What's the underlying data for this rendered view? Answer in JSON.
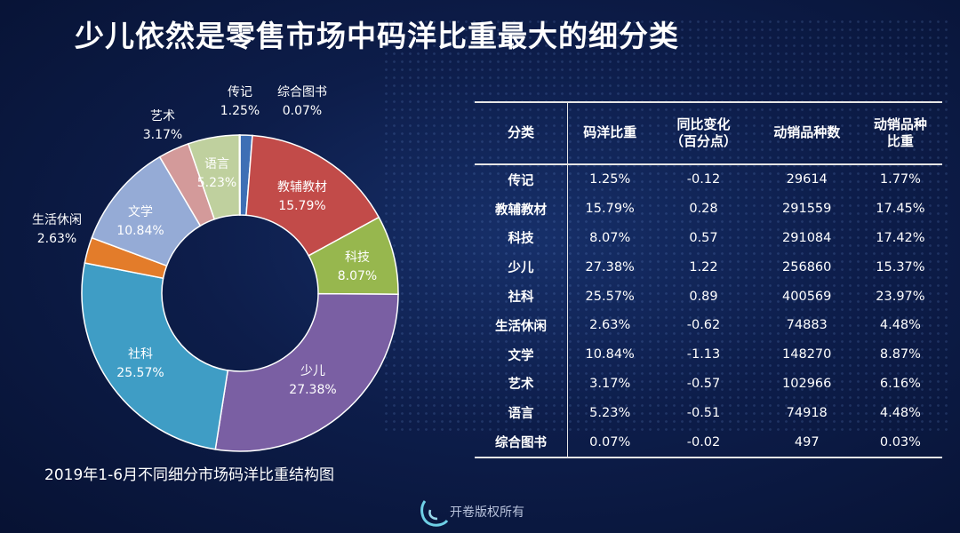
{
  "title": "少儿依然是零售市场中码洋比重最大的细分类",
  "chart_caption": "2019年1-6月不同细分市场码洋比重结构图",
  "watermark": "开卷版权所有",
  "chart_data": {
    "type": "pie",
    "title": "2019年1-6月不同细分市场码洋比重结构图",
    "slices": [
      {
        "label": "传记",
        "value": 1.25,
        "display": "1.25%",
        "color": "#3e6fb5"
      },
      {
        "label": "教辅教材",
        "value": 15.79,
        "display": "15.79%",
        "color": "#c24b49"
      },
      {
        "label": "科技",
        "value": 8.07,
        "display": "8.07%",
        "color": "#97b74e"
      },
      {
        "label": "少儿",
        "value": 27.38,
        "display": "27.38%",
        "color": "#7a5fa3"
      },
      {
        "label": "社科",
        "value": 25.57,
        "display": "25.57%",
        "color": "#3f9dc5"
      },
      {
        "label": "生活休闲",
        "value": 2.63,
        "display": "2.63%",
        "color": "#e37c2a"
      },
      {
        "label": "文学",
        "value": 10.84,
        "display": "10.84%",
        "color": "#95abd6"
      },
      {
        "label": "艺术",
        "value": 3.17,
        "display": "3.17%",
        "color": "#d39a9a"
      },
      {
        "label": "语言",
        "value": 5.23,
        "display": "5.23%",
        "color": "#bfd09e"
      },
      {
        "label": "综合图书",
        "value": 0.07,
        "display": "0.07%",
        "color": "#2a4f86"
      }
    ]
  },
  "table": {
    "headers": [
      {
        "line1": "分类",
        "line2": ""
      },
      {
        "line1": "码洋比重",
        "line2": ""
      },
      {
        "line1": "同比变化",
        "line2": "（百分点）"
      },
      {
        "line1": "动销品种数",
        "line2": ""
      },
      {
        "line1": "动销品种",
        "line2": "比重"
      }
    ],
    "rows": [
      [
        "传记",
        "1.25%",
        "-0.12",
        "29614",
        "1.77%"
      ],
      [
        "教辅教材",
        "15.79%",
        "0.28",
        "291559",
        "17.45%"
      ],
      [
        "科技",
        "8.07%",
        "0.57",
        "291084",
        "17.42%"
      ],
      [
        "少儿",
        "27.38%",
        "1.22",
        "256860",
        "15.37%"
      ],
      [
        "社科",
        "25.57%",
        "0.89",
        "400569",
        "23.97%"
      ],
      [
        "生活休闲",
        "2.63%",
        "-0.62",
        "74883",
        "4.48%"
      ],
      [
        "文学",
        "10.84%",
        "-1.13",
        "148270",
        "8.87%"
      ],
      [
        "艺术",
        "3.17%",
        "-0.57",
        "102966",
        "6.16%"
      ],
      [
        "语言",
        "5.23%",
        "-0.51",
        "74918",
        "4.48%"
      ],
      [
        "综合图书",
        "0.07%",
        "-0.02",
        "497",
        "0.03%"
      ]
    ]
  }
}
